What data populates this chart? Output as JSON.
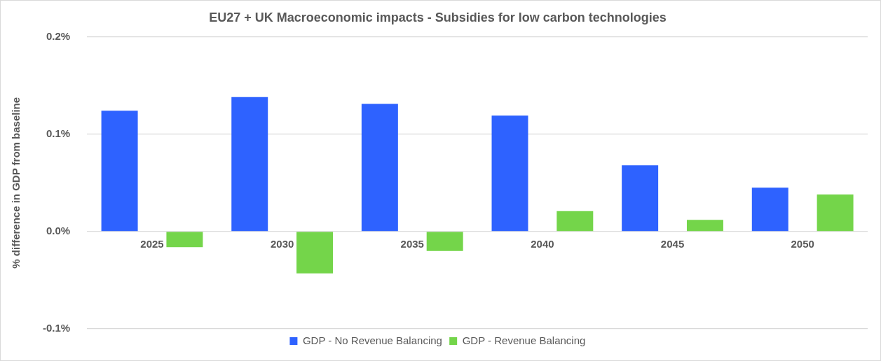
{
  "chart_data": {
    "type": "bar",
    "title": "EU27 + UK Macroeconomic impacts - Subsidies for low carbon technologies",
    "ylabel": "% difference in GDP from baseline",
    "categories": [
      "2025",
      "2030",
      "2035",
      "2040",
      "2045",
      "2050"
    ],
    "series": [
      {
        "name": "GDP - No Revenue Balancing",
        "color": "#2e62ff",
        "values": [
          0.124,
          0.138,
          0.131,
          0.119,
          0.068,
          0.045
        ]
      },
      {
        "name": "GDP - Revenue Balancing",
        "color": "#74d54a",
        "values": [
          -0.016,
          -0.043,
          -0.02,
          0.021,
          0.012,
          0.038
        ]
      }
    ],
    "ylim": [
      -0.1,
      0.2
    ],
    "yticks": [
      {
        "value": -0.1,
        "label": "-0.1%"
      },
      {
        "value": 0,
        "label": "0.0%"
      },
      {
        "value": 0.1,
        "label": "0.1%"
      },
      {
        "value": 0.2,
        "label": "0.2%"
      }
    ],
    "grid": "y",
    "legend": "bottom"
  }
}
